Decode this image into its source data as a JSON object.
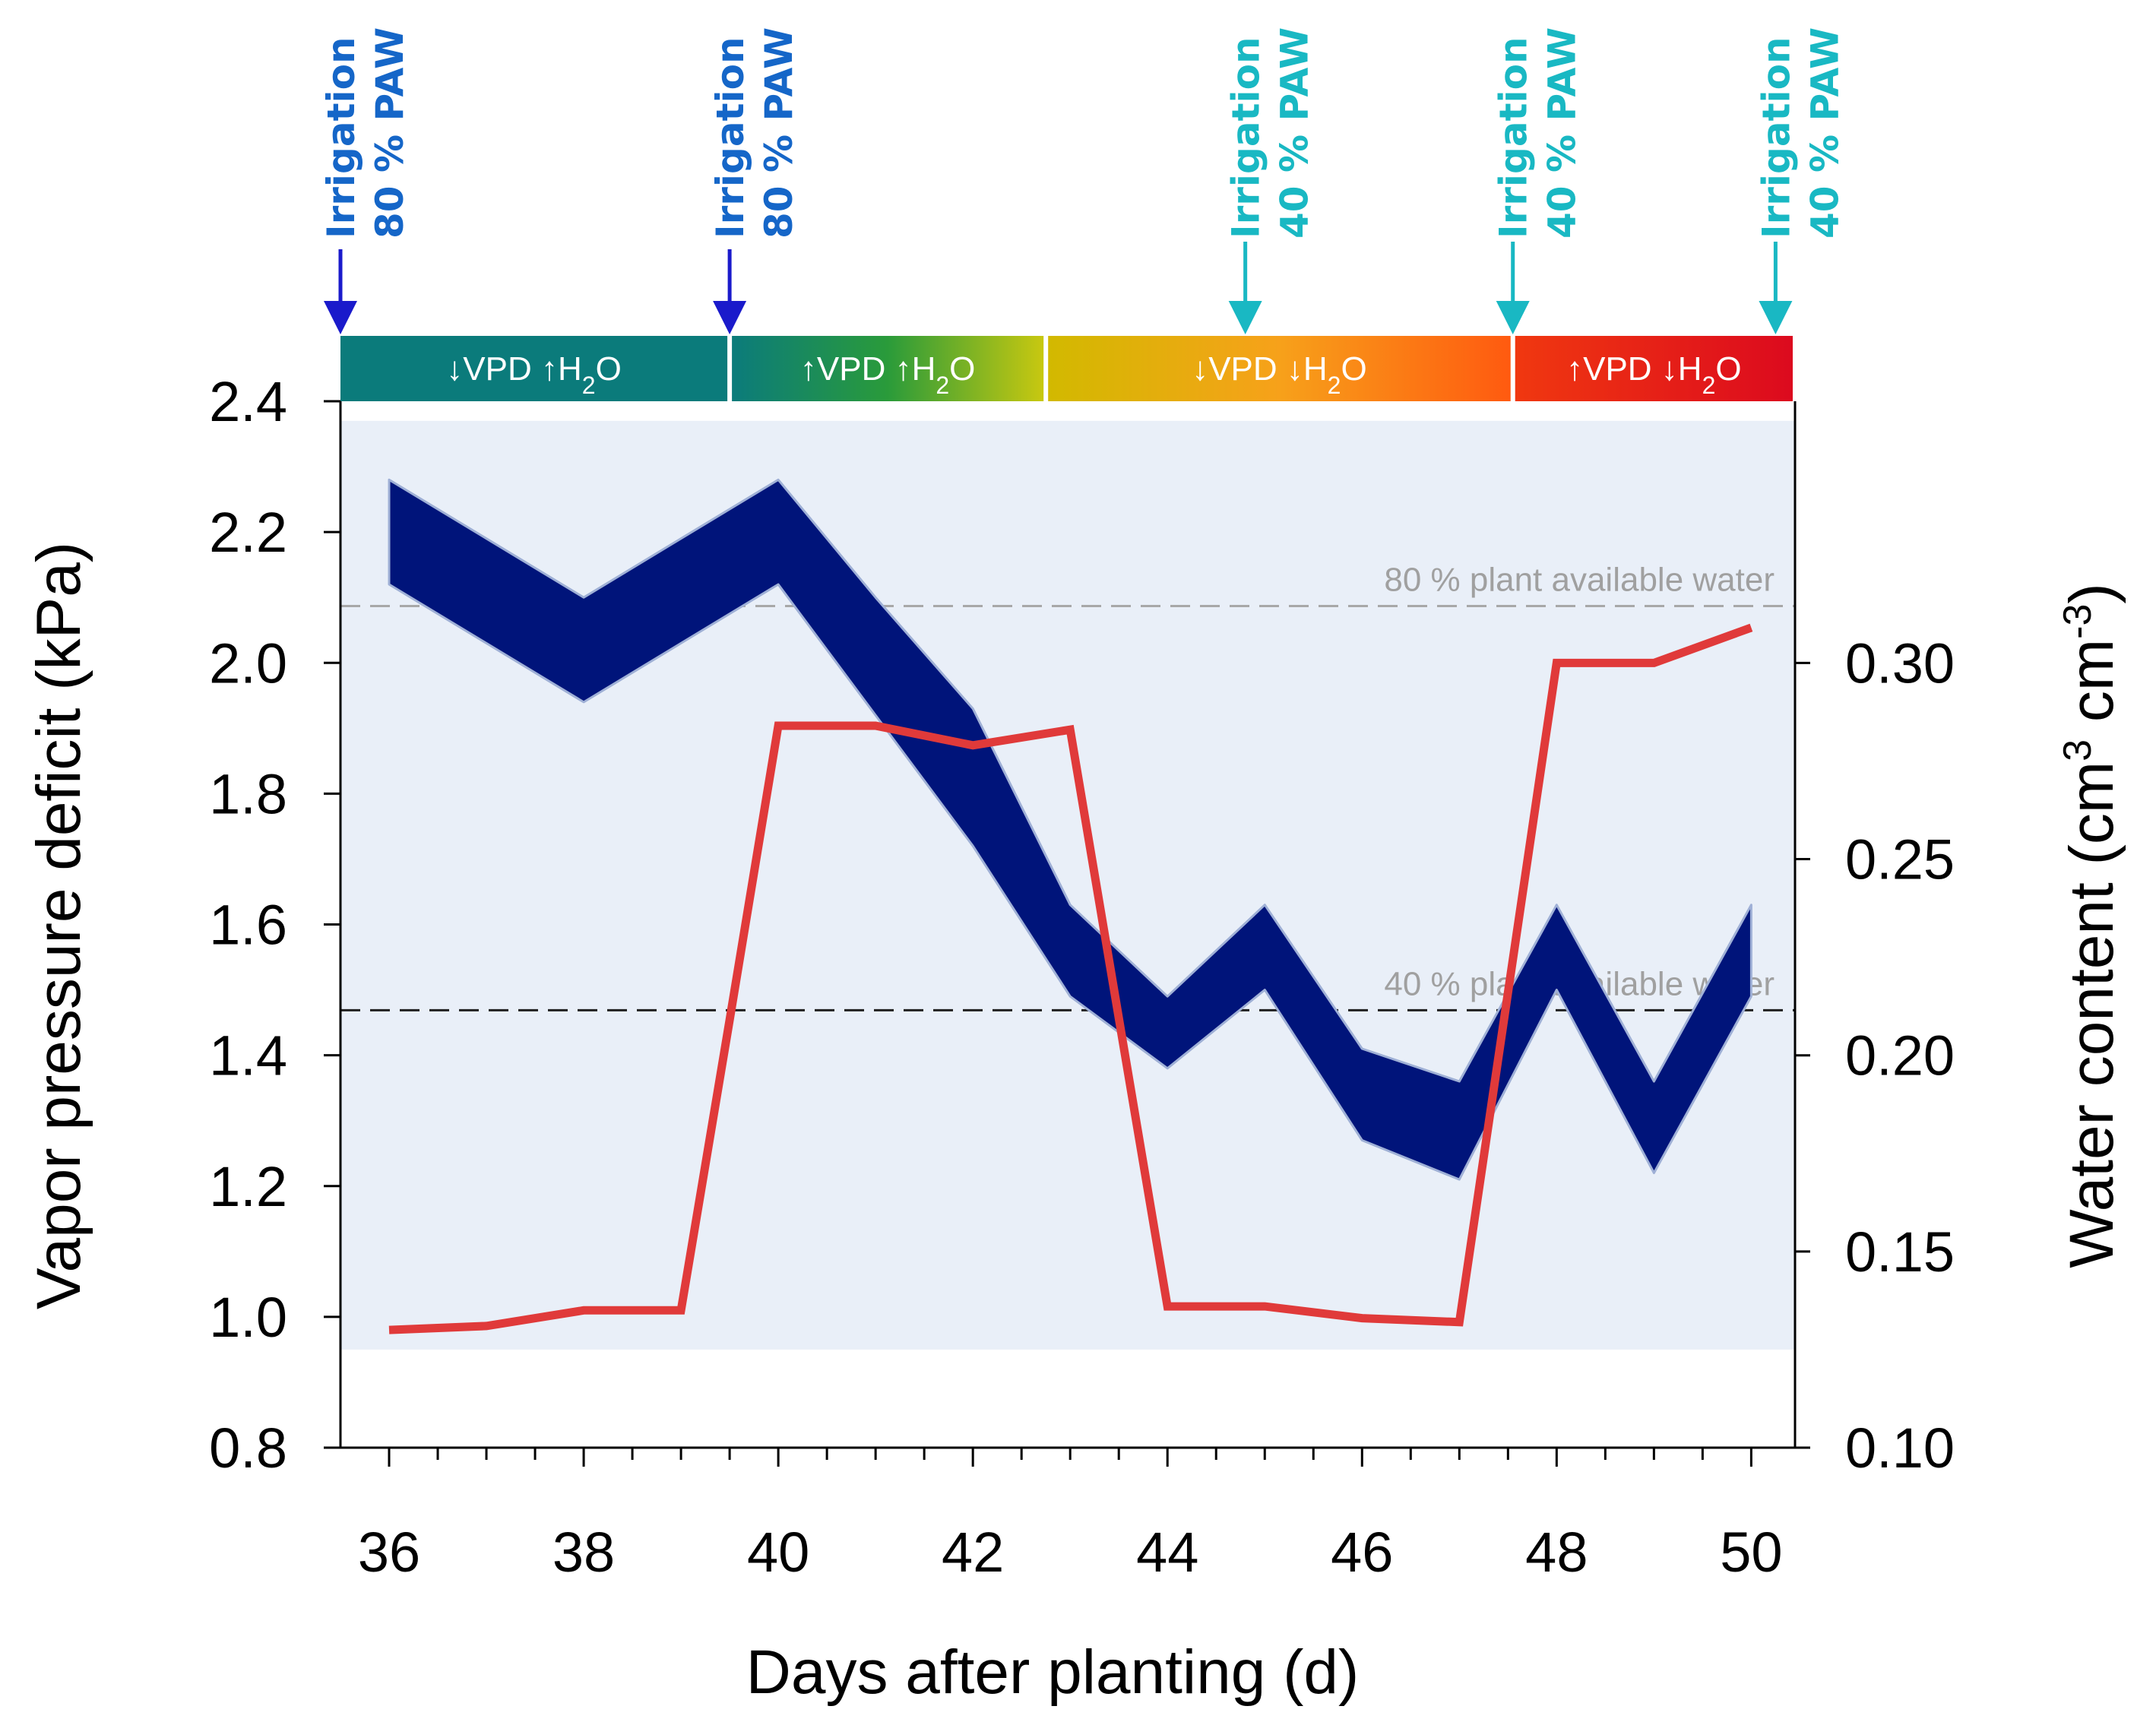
{
  "chart_data": {
    "type": "line",
    "xlabel": "Days after planting (d)",
    "ylabel_left": "Vapor pressure deficit (kPa)",
    "ylabel_right_parts": [
      "Water content (cm",
      "3",
      " cm",
      "-3",
      ")"
    ],
    "x_range": [
      35.5,
      50.45
    ],
    "x_ticks": [
      36,
      38,
      40,
      42,
      44,
      46,
      48,
      50
    ],
    "x_tick_labels": [
      "36",
      "38",
      "40",
      "42",
      "44",
      "46",
      "48",
      "50"
    ],
    "y_left_range": [
      0.8,
      2.4
    ],
    "y_left_ticks": [
      0.8,
      1.0,
      1.2,
      1.4,
      1.6,
      1.8,
      2.0,
      2.2,
      2.4
    ],
    "y_left_tick_labels": [
      "0.8",
      "1.0",
      "1.2",
      "1.4",
      "1.6",
      "1.8",
      "2.0",
      "2.2",
      "2.4"
    ],
    "y_right_range": [
      0.1,
      0.3667
    ],
    "y_right_ticks": [
      0.1,
      0.15,
      0.2,
      0.25,
      0.3
    ],
    "y_right_tick_labels": [
      "0.10",
      "0.15",
      "0.20",
      "0.25",
      "0.30"
    ],
    "shaded_region_kpa": [
      0.95,
      2.37
    ],
    "series": [
      {
        "name": "Vapor pressure deficit range",
        "kind": "band",
        "axis": "left",
        "color": "#00147a",
        "x": [
          36,
          37,
          38,
          39,
          40,
          41,
          42,
          43,
          44,
          45,
          46,
          47,
          48,
          49,
          50
        ],
        "upper": [
          2.28,
          2.19,
          2.1,
          2.19,
          2.28,
          2.1,
          1.93,
          1.63,
          1.49,
          1.63,
          1.41,
          1.36,
          1.63,
          1.36,
          1.63
        ],
        "lower": [
          2.12,
          2.03,
          1.94,
          2.03,
          2.12,
          1.92,
          1.72,
          1.49,
          1.38,
          1.5,
          1.27,
          1.21,
          1.5,
          1.22,
          1.49
        ]
      },
      {
        "name": "Water content",
        "kind": "line",
        "axis": "right",
        "color": "#e03a3a",
        "x": [
          36,
          37,
          38,
          39,
          39.5,
          40,
          41,
          42,
          43,
          44,
          45,
          46,
          47,
          48,
          49,
          50
        ],
        "values": [
          0.13,
          0.131,
          0.135,
          0.135,
          0.209,
          0.284,
          0.284,
          0.279,
          0.283,
          0.136,
          0.136,
          0.133,
          0.132,
          0.3,
          0.3,
          0.309
        ]
      }
    ],
    "reference_lines": [
      {
        "label": "80 % plant available water",
        "axis": "right",
        "value": 0.3145,
        "color": "#a8a8a8"
      },
      {
        "label": "40 % plant available water",
        "axis": "right",
        "value": 0.2115,
        "color": "#202020"
      }
    ],
    "treatment_bands": [
      {
        "x_start": 35.5,
        "x_end": 39.5,
        "arrows": [
          "↓",
          "↑"
        ],
        "labels": [
          "VPD",
          "H"
        ],
        "sub": "2",
        "suffix": "O",
        "colors": [
          "#0b7b7b",
          "#0b7b7b"
        ]
      },
      {
        "x_start": 39.5,
        "x_end": 42.75,
        "arrows": [
          "↑",
          "↑"
        ],
        "labels": [
          "VPD",
          "H"
        ],
        "sub": "2",
        "suffix": "O",
        "colors": [
          "#0b7b7b",
          "#2a9b3a",
          "#c8c810"
        ]
      },
      {
        "x_start": 42.75,
        "x_end": 47.55,
        "arrows": [
          "↓",
          "↓"
        ],
        "labels": [
          "VPD",
          "H"
        ],
        "sub": "2",
        "suffix": "O",
        "colors": [
          "#d2b900",
          "#f7a11a",
          "#ff5a10"
        ]
      },
      {
        "x_start": 47.55,
        "x_end": 50.45,
        "arrows": [
          "↑",
          "↓"
        ],
        "labels": [
          "VPD",
          "H"
        ],
        "sub": "2",
        "suffix": "O",
        "colors": [
          "#f03810",
          "#dc0a1e"
        ]
      }
    ],
    "irrigation_events": [
      {
        "x": 35.5,
        "line1": "Irrigation",
        "line2": "80 % PAW",
        "color1": "#1566c8",
        "color2": "#1566c8",
        "arrow_color": "#1a1acb",
        "arrow": "short"
      },
      {
        "x": 39.5,
        "line1": "Irrigation",
        "line2": "80 % PAW",
        "color1": "#1566c8",
        "color2": "#1566c8",
        "arrow_color": "#1a1acb",
        "arrow": "short"
      },
      {
        "x": 44.8,
        "line1": "Irrigation",
        "line2": "40 % PAW",
        "color1": "#19b8c3",
        "color2": "#19b8c3",
        "arrow_color": "#19b8c3",
        "arrow": "long"
      },
      {
        "x": 47.55,
        "line1": "Irrigation",
        "line2": "40 % PAW",
        "color1": "#19b8c3",
        "color2": "#19b8c3",
        "arrow_color": "#19b8c3",
        "arrow": "long"
      },
      {
        "x": 50.25,
        "line1": "Irrigation",
        "line2": "40 % PAW",
        "color1": "#19b8c3",
        "color2": "#19b8c3",
        "arrow_color": "#19b8c3",
        "arrow": "long"
      }
    ]
  }
}
